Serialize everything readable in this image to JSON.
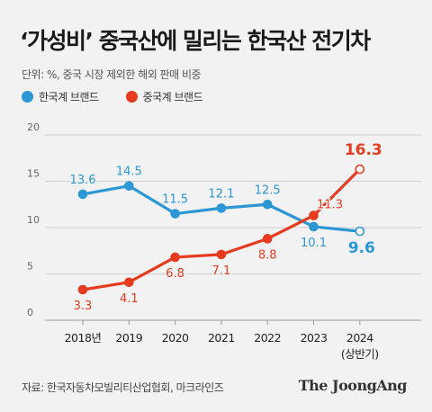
{
  "title": "‘가성비’ 중국산에 밀리는 한국산 전기차",
  "unit_note": "단위: %, 중국 시장 제외한 해외 판매 비중",
  "source": "자료: 한국자동차모빌리티산업협회, 마크라인즈",
  "brand": "The JoongAng",
  "colors": {
    "korean": "#2b97d4",
    "chinese": "#e63b1f",
    "background": "#f2f2f2",
    "grid": "#cfcfcf"
  },
  "chart_data": {
    "type": "line",
    "categories": [
      "2018년",
      "2019",
      "2020",
      "2021",
      "2022",
      "2023",
      "2024"
    ],
    "category_sublabels": [
      "",
      "",
      "",
      "",
      "",
      "",
      "(상반기)"
    ],
    "yticks": [
      0,
      5,
      10,
      15,
      20
    ],
    "ylim": [
      0,
      20
    ],
    "grid": true,
    "legend_position": "top-left",
    "series": [
      {
        "name": "한국계 브랜드",
        "color": "#2b97d4",
        "values": [
          13.6,
          14.5,
          11.5,
          12.1,
          12.5,
          10.1,
          9.6
        ],
        "labels": [
          "13.6",
          "14.5",
          "11.5",
          "12.1",
          "12.5",
          "10.1",
          "9.6"
        ]
      },
      {
        "name": "중국계 브랜드",
        "color": "#e63b1f",
        "values": [
          3.3,
          4.1,
          6.8,
          7.1,
          8.8,
          11.3,
          16.3
        ],
        "labels": [
          "3.3",
          "4.1",
          "6.8",
          "7.1",
          "8.8",
          "11.3",
          "16.3"
        ]
      }
    ]
  }
}
